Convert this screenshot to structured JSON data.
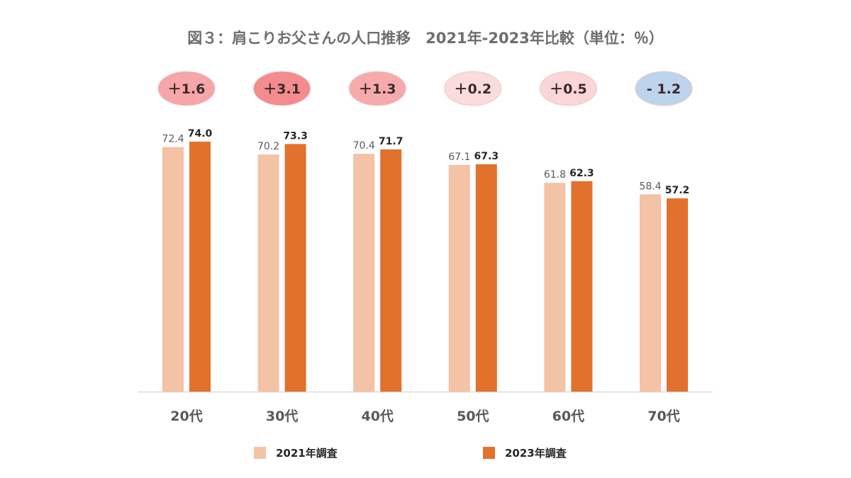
{
  "chart_data": {
    "type": "bar",
    "title": "図３：肩こりお父さんの人口推移　2021年-2023年比較（単位：％）",
    "xlabel": "",
    "ylabel": "",
    "ylim": [
      0,
      77
    ],
    "grid": false,
    "categories": [
      "20代",
      "30代",
      "40代",
      "50代",
      "60代",
      "70代"
    ],
    "series": [
      {
        "name": "2021年調査",
        "color": "#f4c2a5",
        "values": [
          72.4,
          70.2,
          70.4,
          67.1,
          61.8,
          58.4
        ],
        "labels": [
          "72.4",
          "70.2",
          "70.4",
          "67.1",
          "61.8",
          "58.4"
        ]
      },
      {
        "name": "2023年調査",
        "color": "#e2712e",
        "values": [
          74.0,
          73.3,
          71.7,
          67.3,
          62.3,
          57.2
        ],
        "labels": [
          "74.0",
          "73.3",
          "71.7",
          "67.3",
          "62.3",
          "57.2"
        ]
      }
    ],
    "annotations": [
      {
        "text": "＋1.6",
        "value": 1.6,
        "color": "#f6a6a8"
      },
      {
        "text": "＋3.1",
        "value": 3.1,
        "color": "#f48b8d"
      },
      {
        "text": "＋1.3",
        "value": 1.3,
        "color": "#f7aaac"
      },
      {
        "text": "＋0.2",
        "value": 0.2,
        "color": "#fadcdc"
      },
      {
        "text": "＋0.5",
        "value": 0.5,
        "color": "#fad6d7"
      },
      {
        "text": "- 1.2",
        "value": -1.2,
        "color": "#bcd4ec"
      }
    ],
    "legend": {
      "position": "bottom",
      "items": [
        {
          "label": "2021年調査",
          "color": "#f4c2a5"
        },
        {
          "label": "2023年調査",
          "color": "#e2712e"
        }
      ]
    },
    "axis_line_color": "#d9d9d9"
  }
}
